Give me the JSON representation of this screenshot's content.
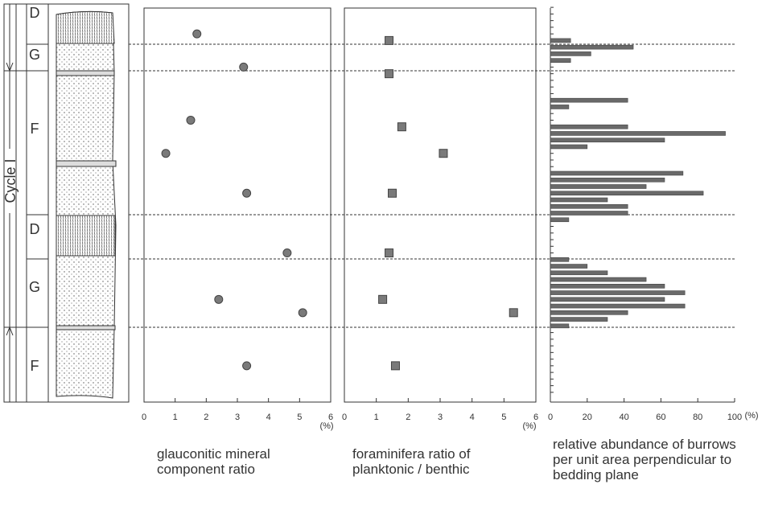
{
  "column": {
    "cycle": "Cycle I",
    "units": [
      "D",
      "G",
      "F",
      "D",
      "G",
      "F"
    ]
  },
  "chart_data": [
    {
      "type": "scatter",
      "marker": "circle",
      "color": "#7a7a7a",
      "box": true,
      "title": "glauconitic mineral component ratio",
      "xlabel": "(%)",
      "xlim": [
        0,
        6
      ],
      "xticks": [
        0,
        1,
        2,
        3,
        4,
        5,
        6
      ],
      "categories": [
        null,
        null,
        null,
        null,
        null,
        null,
        null,
        null,
        null,
        null,
        null,
        null,
        null,
        null,
        null,
        null,
        null,
        null,
        null,
        null,
        null,
        null,
        null,
        null,
        null,
        null,
        null,
        null,
        null,
        null,
        null,
        null,
        null,
        null,
        null,
        null,
        null,
        null,
        null,
        null,
        null,
        null,
        null,
        null,
        null,
        null,
        null,
        null,
        null,
        null,
        null,
        null,
        null,
        null,
        null,
        null,
        null,
        null,
        null
      ],
      "values": [
        null,
        null,
        null,
        null,
        1.7,
        null,
        null,
        null,
        null,
        3.2,
        null,
        null,
        null,
        null,
        null,
        null,
        null,
        1.5,
        null,
        null,
        null,
        null,
        0.7,
        null,
        null,
        null,
        null,
        null,
        3.3,
        null,
        null,
        null,
        null,
        null,
        null,
        null,
        null,
        4.6,
        null,
        null,
        null,
        null,
        null,
        null,
        2.4,
        null,
        5.1,
        null,
        null,
        null,
        null,
        null,
        null,
        null,
        3.3,
        null,
        null,
        null,
        null
      ]
    },
    {
      "type": "scatter",
      "marker": "square",
      "color": "#7a7a7a",
      "box": true,
      "title": "foraminifera ratio of planktonic / benthic",
      "xlabel": "(%)",
      "xlim": [
        0,
        6
      ],
      "xticks": [
        0,
        1,
        2,
        3,
        4,
        5,
        6
      ],
      "categories": [
        null,
        null,
        null,
        null,
        null,
        null,
        null,
        null,
        null,
        null,
        null,
        null,
        null,
        null,
        null,
        null,
        null,
        null,
        null,
        null,
        null,
        null,
        null,
        null,
        null,
        null,
        null,
        null,
        null,
        null,
        null,
        null,
        null,
        null,
        null,
        null,
        null,
        null,
        null,
        null,
        null,
        null,
        null,
        null,
        null,
        null,
        null,
        null,
        null,
        null,
        null,
        null,
        null,
        null,
        null,
        null,
        null,
        null,
        null
      ],
      "values": [
        null,
        null,
        null,
        null,
        null,
        1.4,
        null,
        null,
        null,
        null,
        1.4,
        null,
        null,
        null,
        null,
        null,
        null,
        null,
        1.8,
        null,
        null,
        null,
        3.1,
        null,
        null,
        null,
        null,
        null,
        1.5,
        null,
        null,
        null,
        null,
        null,
        null,
        null,
        null,
        1.4,
        null,
        null,
        null,
        null,
        null,
        null,
        1.2,
        null,
        5.3,
        null,
        null,
        null,
        null,
        null,
        null,
        null,
        1.6,
        null,
        null,
        null,
        null
      ]
    },
    {
      "type": "bar",
      "orientation": "horizontal",
      "color": "#6a6a6a",
      "box": false,
      "title": "relative abundance of burrows per unit area perpendicular to bedding plane",
      "xlabel": "(%)",
      "xlim": [
        0,
        100
      ],
      "xticks": [
        0,
        20,
        40,
        60,
        80,
        100
      ],
      "categories": [
        null,
        null,
        null,
        null,
        null,
        null,
        null,
        null,
        null,
        null,
        null,
        null,
        null,
        null,
        null,
        null,
        null,
        null,
        null,
        null,
        null,
        null,
        null,
        null,
        null,
        null,
        null,
        null,
        null,
        null,
        null,
        null,
        null,
        null,
        null,
        null,
        null,
        null,
        null,
        null,
        null,
        null,
        null,
        null,
        null,
        null,
        null,
        null,
        null,
        null,
        null,
        null,
        null,
        null,
        null,
        null,
        null,
        null,
        null
      ],
      "values": [
        null,
        null,
        null,
        null,
        null,
        11,
        45,
        22,
        11,
        null,
        null,
        null,
        null,
        null,
        42,
        10,
        null,
        null,
        42,
        95,
        62,
        20,
        null,
        null,
        null,
        72,
        62,
        52,
        83,
        31,
        42,
        42,
        10,
        null,
        null,
        null,
        null,
        null,
        10,
        20,
        31,
        52,
        62,
        73,
        62,
        73,
        42,
        31,
        10,
        null,
        null,
        null,
        null,
        null,
        null,
        null,
        null,
        null,
        null
      ]
    }
  ]
}
